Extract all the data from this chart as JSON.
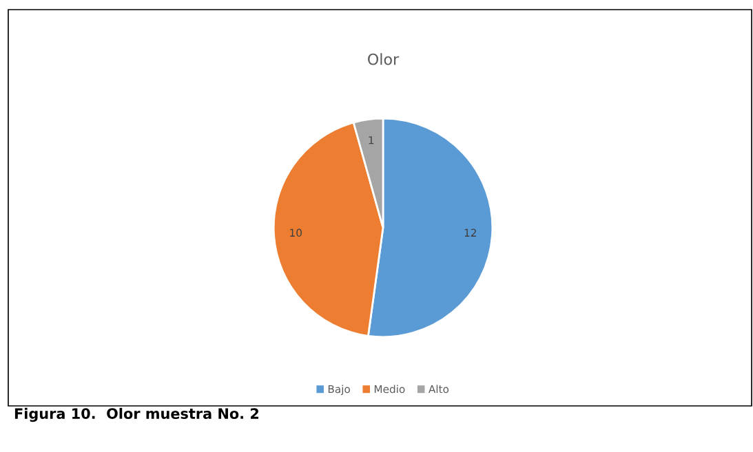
{
  "chart_data": {
    "type": "pie",
    "title": "Olor",
    "categories": [
      "Bajo",
      "Medio",
      "Alto"
    ],
    "values": [
      12,
      10,
      1
    ],
    "colors": [
      "#5b9bd5",
      "#ed7d31",
      "#a5a5a5"
    ],
    "data_labels": true,
    "legend": "bottom",
    "annotations": [
      "Figura 10.  Olor muestra No. 2"
    ]
  }
}
